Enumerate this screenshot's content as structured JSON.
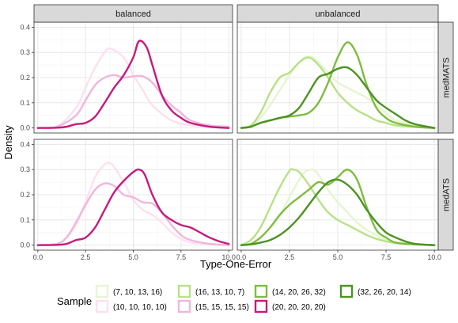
{
  "chart_data": {
    "type": "line",
    "xlabel": "Type-One-Error",
    "ylabel": "Density",
    "xlim": [
      -0.2,
      10.2
    ],
    "ylim": [
      -0.02,
      0.42
    ],
    "x_ticks": [
      "0.0",
      "2.5",
      "5.0",
      "7.5",
      "10.0"
    ],
    "y_ticks": [
      "0.0",
      "0.1",
      "0.2",
      "0.3",
      "0.4"
    ],
    "grid": true,
    "columns": [
      "balanced",
      "unbalanced"
    ],
    "rows": [
      "medMATS",
      "medATS"
    ],
    "legend": {
      "title": "Sample",
      "position": "bottom",
      "entries": [
        {
          "key": "s1",
          "label": "(7, 10, 13, 16)",
          "color": "#e6f5d0"
        },
        {
          "key": "s2",
          "label": "(10, 10, 10, 10)",
          "color": "#fde0ef"
        },
        {
          "key": "s3",
          "label": "(16, 13, 10, 7)",
          "color": "#b8e186"
        },
        {
          "key": "s4",
          "label": "(15, 15, 15, 15)",
          "color": "#f1b6da"
        },
        {
          "key": "s5",
          "label": "(14, 20, 26, 32)",
          "color": "#7fbc41"
        },
        {
          "key": "s6",
          "label": "(20, 20, 20, 20)",
          "color": "#c51b7d"
        },
        {
          "key": "s7",
          "label": "(32, 26, 20, 14)",
          "color": "#4d9221"
        }
      ]
    },
    "panels": [
      {
        "column": "balanced",
        "row": "medMATS",
        "series": [
          {
            "key": "s2",
            "x": [
              0,
              1,
              2,
              2.5,
              3,
              3.5,
              3.8,
              4.5,
              5,
              5.5,
              6,
              7,
              8,
              9,
              10
            ],
            "y": [
              0,
              0.005,
              0.08,
              0.16,
              0.24,
              0.3,
              0.315,
              0.28,
              0.21,
              0.15,
              0.09,
              0.03,
              0.01,
              0.005,
              0
            ]
          },
          {
            "key": "s4",
            "x": [
              0,
              1,
              2,
              2.5,
              3,
              3.5,
              4,
              4.5,
              5,
              5.5,
              6,
              6.5,
              7,
              7.5,
              8,
              9,
              10
            ],
            "y": [
              0,
              0.005,
              0.05,
              0.11,
              0.17,
              0.2,
              0.21,
              0.2,
              0.205,
              0.205,
              0.18,
              0.13,
              0.09,
              0.06,
              0.03,
              0.01,
              0.005
            ]
          },
          {
            "key": "s6",
            "x": [
              0,
              1,
              1.5,
              2,
              2.5,
              3,
              3.5,
              4,
              4.5,
              5,
              5.3,
              5.7,
              6,
              6.5,
              7,
              7.5,
              8,
              9,
              10
            ],
            "y": [
              0,
              0.001,
              0.005,
              0.015,
              0.02,
              0.045,
              0.1,
              0.16,
              0.21,
              0.28,
              0.345,
              0.32,
              0.25,
              0.13,
              0.07,
              0.04,
              0.02,
              0.005,
              0
            ]
          }
        ]
      },
      {
        "column": "unbalanced",
        "row": "medMATS",
        "series": [
          {
            "key": "s1",
            "x": [
              0,
              0.5,
              1,
              1.5,
              2,
              2.5,
              3,
              3.3,
              3.7,
              4,
              4.5,
              5,
              5.5,
              6,
              6.5,
              7,
              7.5,
              8,
              9,
              10
            ],
            "y": [
              0,
              0.005,
              0.04,
              0.09,
              0.15,
              0.21,
              0.26,
              0.28,
              0.28,
              0.26,
              0.22,
              0.18,
              0.16,
              0.14,
              0.12,
              0.09,
              0.06,
              0.03,
              0.01,
              0
            ]
          },
          {
            "key": "s3",
            "x": [
              0,
              0.5,
              1,
              1.5,
              2,
              2.5,
              3,
              3.5,
              4,
              4.5,
              5,
              5.5,
              6,
              6.5,
              7,
              7.5,
              8,
              9,
              10
            ],
            "y": [
              0,
              0.01,
              0.06,
              0.14,
              0.2,
              0.22,
              0.26,
              0.28,
              0.25,
              0.2,
              0.14,
              0.1,
              0.07,
              0.05,
              0.03,
              0.02,
              0.01,
              0.005,
              0
            ]
          },
          {
            "key": "s5",
            "x": [
              0,
              0.5,
              1,
              1.5,
              2,
              2.5,
              3,
              3.5,
              4,
              4.5,
              5,
              5.5,
              6,
              6.5,
              7,
              7.5,
              8,
              9,
              10
            ],
            "y": [
              0,
              0.005,
              0.02,
              0.03,
              0.04,
              0.045,
              0.05,
              0.06,
              0.1,
              0.18,
              0.28,
              0.34,
              0.29,
              0.17,
              0.08,
              0.04,
              0.02,
              0.005,
              0
            ]
          },
          {
            "key": "s7",
            "x": [
              0,
              0.5,
              1,
              1.5,
              2,
              2.5,
              3,
              3.5,
              4,
              4.5,
              5,
              5.5,
              6,
              6.5,
              7,
              7.5,
              8,
              8.5,
              9,
              10
            ],
            "y": [
              0,
              0.005,
              0.02,
              0.03,
              0.04,
              0.05,
              0.08,
              0.14,
              0.2,
              0.215,
              0.235,
              0.24,
              0.21,
              0.16,
              0.11,
              0.08,
              0.055,
              0.03,
              0.015,
              0
            ]
          }
        ]
      },
      {
        "column": "balanced",
        "row": "medATS",
        "series": [
          {
            "key": "s2",
            "x": [
              0,
              1,
              1.5,
              2,
              2.5,
              3,
              3.5,
              3.8,
              4,
              4.5,
              5,
              5.5,
              6,
              6.5,
              7,
              7.5,
              8,
              9,
              10
            ],
            "y": [
              0,
              0.005,
              0.03,
              0.08,
              0.17,
              0.27,
              0.32,
              0.325,
              0.31,
              0.25,
              0.18,
              0.14,
              0.12,
              0.09,
              0.05,
              0.025,
              0.01,
              0.005,
              0
            ]
          },
          {
            "key": "s4",
            "x": [
              0,
              1,
              1.5,
              2,
              2.5,
              3,
              3.5,
              4,
              4.5,
              5,
              5.5,
              6,
              6.5,
              7,
              7.5,
              8,
              9,
              10
            ],
            "y": [
              0,
              0.005,
              0.03,
              0.09,
              0.16,
              0.22,
              0.245,
              0.235,
              0.2,
              0.19,
              0.17,
              0.165,
              0.13,
              0.08,
              0.04,
              0.02,
              0.005,
              0
            ]
          },
          {
            "key": "s6",
            "x": [
              0,
              1,
              1.5,
              2,
              2.5,
              3,
              3.5,
              4,
              4.5,
              5,
              5.3,
              5.6,
              6,
              6.5,
              7,
              7.5,
              8,
              8.5,
              9,
              9.5,
              10
            ],
            "y": [
              0,
              0.001,
              0.005,
              0.02,
              0.03,
              0.07,
              0.14,
              0.21,
              0.255,
              0.29,
              0.3,
              0.28,
              0.2,
              0.13,
              0.1,
              0.08,
              0.07,
              0.05,
              0.03,
              0.015,
              0.005
            ]
          }
        ]
      },
      {
        "column": "unbalanced",
        "row": "medATS",
        "series": [
          {
            "key": "s1",
            "x": [
              0,
              0.5,
              1,
              1.5,
              2,
              2.5,
              3,
              3.3,
              3.7,
              4,
              4.5,
              5,
              5.5,
              6,
              6.5,
              7,
              7.5,
              8,
              9,
              10
            ],
            "y": [
              0,
              0.005,
              0.03,
              0.07,
              0.12,
              0.19,
              0.26,
              0.29,
              0.3,
              0.28,
              0.22,
              0.17,
              0.13,
              0.09,
              0.06,
              0.04,
              0.02,
              0.01,
              0.005,
              0
            ]
          },
          {
            "key": "s3",
            "x": [
              0,
              0.5,
              1,
              1.5,
              2,
              2.5,
              2.7,
              3,
              3.5,
              4,
              4.5,
              5,
              5.5,
              6,
              6.5,
              7,
              7.5,
              8,
              9,
              10
            ],
            "y": [
              0,
              0.02,
              0.07,
              0.15,
              0.23,
              0.295,
              0.3,
              0.29,
              0.24,
              0.18,
              0.13,
              0.1,
              0.08,
              0.06,
              0.04,
              0.025,
              0.015,
              0.008,
              0.003,
              0
            ]
          },
          {
            "key": "s5",
            "x": [
              0,
              0.5,
              1,
              1.5,
              2,
              2.5,
              3,
              3.5,
              4,
              4.5,
              5,
              5.5,
              6,
              6.5,
              7,
              7.5,
              8,
              9,
              10
            ],
            "y": [
              0,
              0.005,
              0.03,
              0.07,
              0.12,
              0.16,
              0.19,
              0.22,
              0.25,
              0.24,
              0.27,
              0.3,
              0.26,
              0.15,
              0.06,
              0.03,
              0.01,
              0.003,
              0
            ]
          },
          {
            "key": "s7",
            "x": [
              0,
              0.5,
              1,
              1.5,
              2,
              2.5,
              3,
              3.5,
              4,
              4.5,
              5,
              5.5,
              6,
              6.5,
              7,
              7.5,
              8,
              8.5,
              9,
              10
            ],
            "y": [
              0,
              0.003,
              0.01,
              0.02,
              0.04,
              0.07,
              0.11,
              0.16,
              0.21,
              0.25,
              0.26,
              0.24,
              0.2,
              0.14,
              0.09,
              0.05,
              0.03,
              0.015,
              0.005,
              0
            ]
          }
        ]
      }
    ]
  }
}
